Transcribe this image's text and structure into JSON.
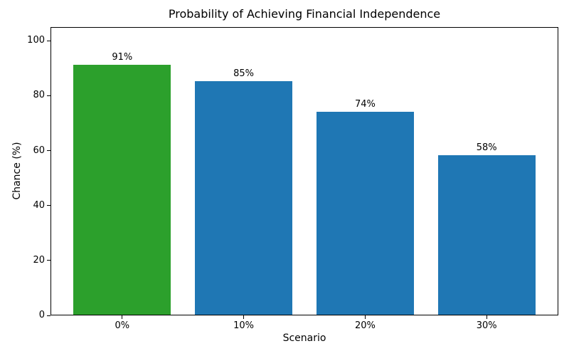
{
  "chart_data": {
    "type": "bar",
    "title": "Probability of Achieving Financial Independence",
    "xlabel": "Scenario",
    "ylabel": "Chance (%)",
    "categories": [
      "0%",
      "10%",
      "20%",
      "30%"
    ],
    "values": [
      91,
      85,
      74,
      58
    ],
    "bar_labels": [
      "91%",
      "85%",
      "74%",
      "58%"
    ],
    "bar_colors": [
      "#2ca02c",
      "#1f77b4",
      "#1f77b4",
      "#1f77b4"
    ],
    "yticks": [
      0,
      20,
      40,
      60,
      80,
      100
    ],
    "ylim": [
      0,
      105
    ],
    "grid": false,
    "legend_position": "none",
    "spine_color": "#000000",
    "background_color": "#ffffff"
  }
}
